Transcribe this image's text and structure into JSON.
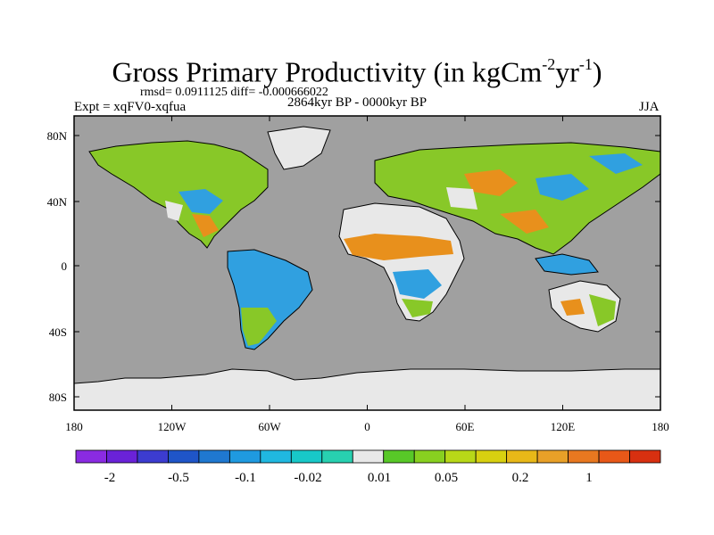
{
  "title": {
    "main": "Gross Primary Productivity (in kgCm",
    "exp1": "-2",
    "mid": "yr",
    "exp2": "-1",
    "close": ")"
  },
  "stats": "rmsd= 0.0911125 diff= -0.000666022",
  "left_label": "Expt = xqFV0-xqfua",
  "center_label": "2864kyr BP - 0000kyr BP",
  "right_label": "JJA",
  "x_ticks": [
    "180",
    "120W",
    "60W",
    "0",
    "60E",
    "120E",
    "180"
  ],
  "y_ticks": [
    "80N",
    "40N",
    "0",
    "40S",
    "80S"
  ],
  "colorbar": {
    "colors": [
      "#8a2be2",
      "#6a22d8",
      "#3c3cd0",
      "#1f55c8",
      "#1f78d0",
      "#1f9ae0",
      "#20b8e0",
      "#18c8c8",
      "#28d0b0",
      "#e8e8e8",
      "#58c828",
      "#88d020",
      "#b8d818",
      "#d8d010",
      "#e8b818",
      "#e8a028",
      "#e87820",
      "#e85818",
      "#d83010"
    ],
    "labels": [
      "-2",
      "-0.5",
      "-0.1",
      "-0.02",
      "0.01",
      "0.05",
      "0.2",
      "1"
    ]
  },
  "colors": {
    "ocean": "#a0a0a0",
    "zero": "#e8e8e8",
    "positive_green": "#88c828",
    "positive_orange": "#e8901c",
    "negative_blue": "#30a0e0"
  }
}
